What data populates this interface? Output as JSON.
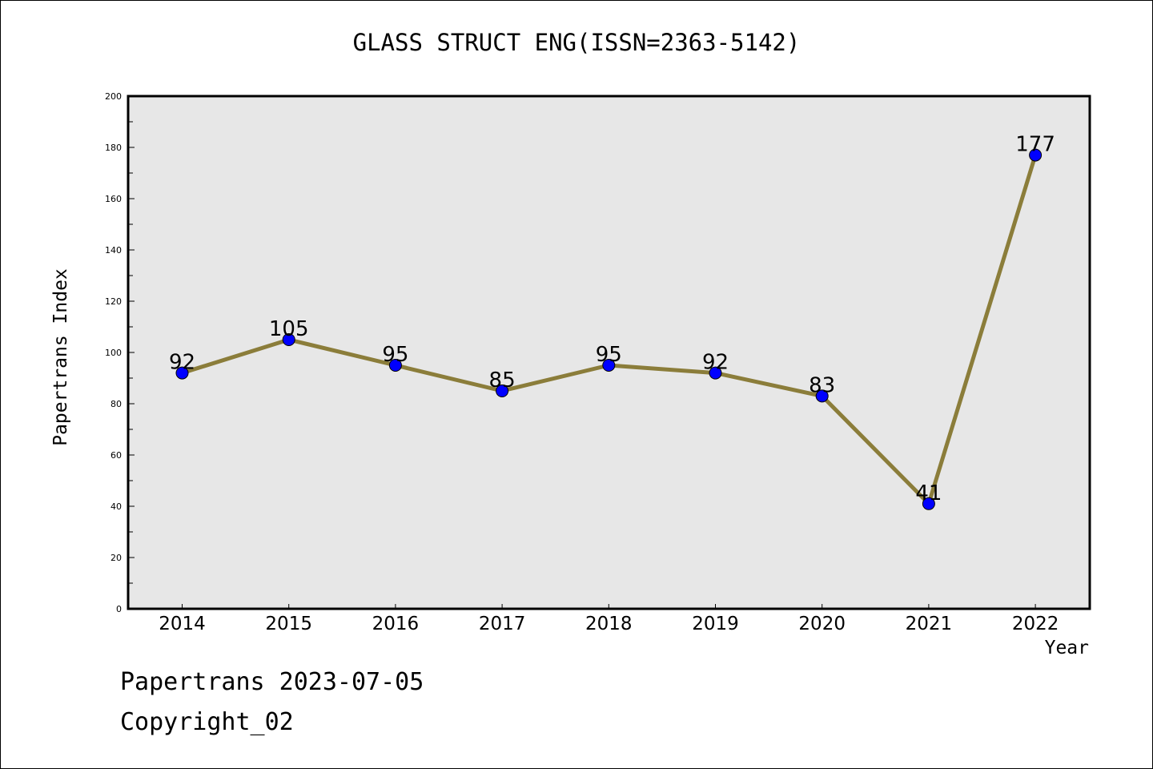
{
  "chart_data": {
    "type": "line",
    "title": "GLASS STRUCT ENG(ISSN=2363-5142)",
    "xlabel": "Year",
    "ylabel": "Papertrans Index",
    "categories": [
      "2014",
      "2015",
      "2016",
      "2017",
      "2018",
      "2019",
      "2020",
      "2021",
      "2022"
    ],
    "values": [
      92,
      105,
      95,
      85,
      95,
      92,
      83,
      41,
      177
    ],
    "data_labels": [
      "92",
      "105",
      "95",
      "85",
      "95",
      "92",
      "83",
      "41",
      "177"
    ],
    "ylim": [
      0,
      200
    ],
    "y_ticks": [
      "0",
      "20",
      "40",
      "60",
      "80",
      "100",
      "120",
      "140",
      "160",
      "180",
      "200"
    ],
    "grid": false,
    "legend": "none",
    "colors": {
      "line": "#8B7D3A",
      "marker": "#0000FF",
      "plot_background": "#E7E7E7"
    }
  },
  "footer": {
    "date_text": "Papertrans 2023-07-05",
    "copyright_text": "Copyright_02"
  }
}
